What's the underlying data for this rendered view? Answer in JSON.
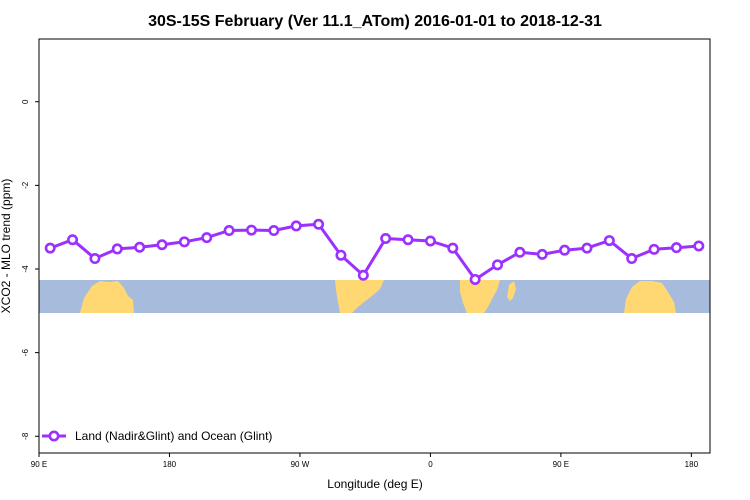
{
  "chart_data": {
    "type": "line",
    "title": "30S-15S February (Ver 11.1_ATom)   2016-01-01 to 2018-12-31",
    "xlabel": "Longitude (deg E)",
    "ylabel": "XCO2 - MLO trend (ppm)",
    "xlim": [
      90,
      450
    ],
    "ylim": [
      -8.4,
      1.5
    ],
    "x_ticks": [
      {
        "value": 90,
        "label": "90 E"
      },
      {
        "value": 160,
        "label": "180"
      },
      {
        "value": 230,
        "label": "90 W"
      },
      {
        "value": 300,
        "label": "0"
      },
      {
        "value": 370,
        "label": "90 E"
      },
      {
        "value": 440,
        "label": "180"
      }
    ],
    "y_ticks": [
      {
        "value": 0,
        "label": "0"
      },
      {
        "value": -2,
        "label": "-2"
      },
      {
        "value": -4,
        "label": "-4"
      },
      {
        "value": -6,
        "label": "-6"
      },
      {
        "value": -8,
        "label": "-8"
      }
    ],
    "series": [
      {
        "name": "Land (Nadir&Glint) and Ocean (Glint)",
        "color": "#9b30ff",
        "x": [
          96,
          108,
          120,
          132,
          144,
          156,
          168,
          180,
          192,
          204,
          216,
          228,
          240,
          252,
          264,
          276,
          288,
          300,
          312,
          324,
          336,
          348,
          360,
          372,
          384,
          396,
          408,
          420,
          432,
          444
        ],
        "y": [
          -3.5,
          -3.3,
          -3.75,
          -3.52,
          -3.48,
          -3.42,
          -3.35,
          -3.25,
          -3.08,
          -3.07,
          -3.08,
          -2.97,
          -2.93,
          -3.67,
          -4.15,
          -3.27,
          -3.3,
          -3.33,
          -3.5,
          -4.25,
          -3.9,
          -3.6,
          -3.65,
          -3.55,
          -3.5,
          -3.32,
          -3.75,
          -3.53,
          -3.49,
          -3.45
        ]
      }
    ],
    "map_strip": {
      "ocean_color": "#a7bcdc",
      "land_color": "#ffd873"
    },
    "grid": false,
    "legend_position": "bottom-left"
  }
}
